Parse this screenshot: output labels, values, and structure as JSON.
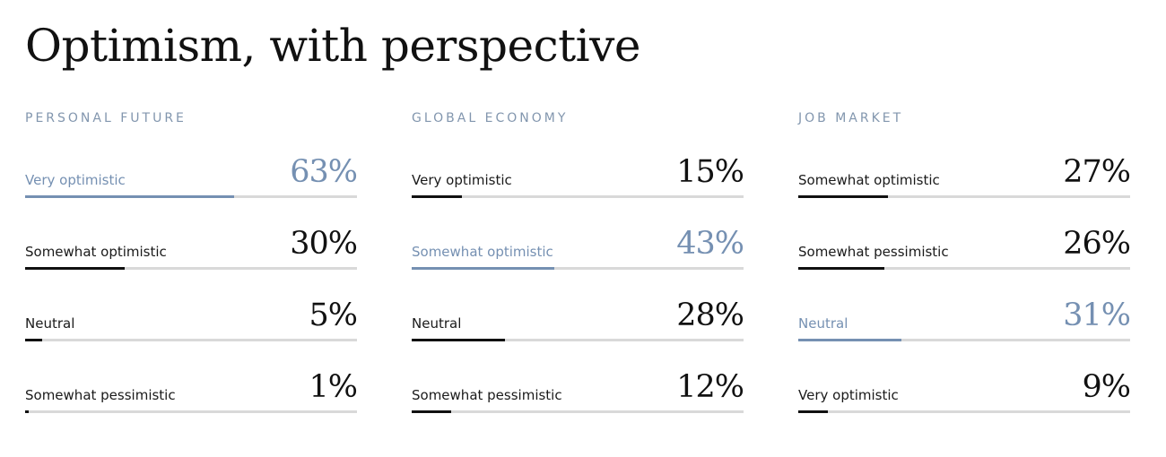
{
  "page": {
    "title": "Optimism, with perspective"
  },
  "colors": {
    "accent": "#7590b2",
    "default_bar": "#111111",
    "track": "#d9d9d9",
    "panel_title": "#8296ae"
  },
  "chart_data": [
    {
      "type": "bar",
      "orientation": "horizontal",
      "title": "PERSONAL FUTURE",
      "ylim": [
        0,
        100
      ],
      "categories": [
        "Very optimistic",
        "Somewhat optimistic",
        "Neutral",
        "Somewhat pessimistic"
      ],
      "values": [
        63,
        30,
        5,
        1
      ],
      "value_labels": [
        "63%",
        "30%",
        "5%",
        "1%"
      ],
      "highlight_index": 0,
      "grid": false
    },
    {
      "type": "bar",
      "orientation": "horizontal",
      "title": "GLOBAL ECONOMY",
      "ylim": [
        0,
        100
      ],
      "categories": [
        "Very optimistic",
        "Somewhat optimistic",
        "Neutral",
        "Somewhat pessimistic"
      ],
      "values": [
        15,
        43,
        28,
        12
      ],
      "value_labels": [
        "15%",
        "43%",
        "28%",
        "12%"
      ],
      "highlight_index": 1,
      "grid": false
    },
    {
      "type": "bar",
      "orientation": "horizontal",
      "title": "JOB MARKET",
      "ylim": [
        0,
        100
      ],
      "categories": [
        "Somewhat optimistic",
        "Somewhat pessimistic",
        "Neutral",
        "Very optimistic"
      ],
      "values": [
        27,
        26,
        31,
        9
      ],
      "value_labels": [
        "27%",
        "26%",
        "31%",
        "9%"
      ],
      "highlight_index": 2,
      "grid": false
    }
  ]
}
